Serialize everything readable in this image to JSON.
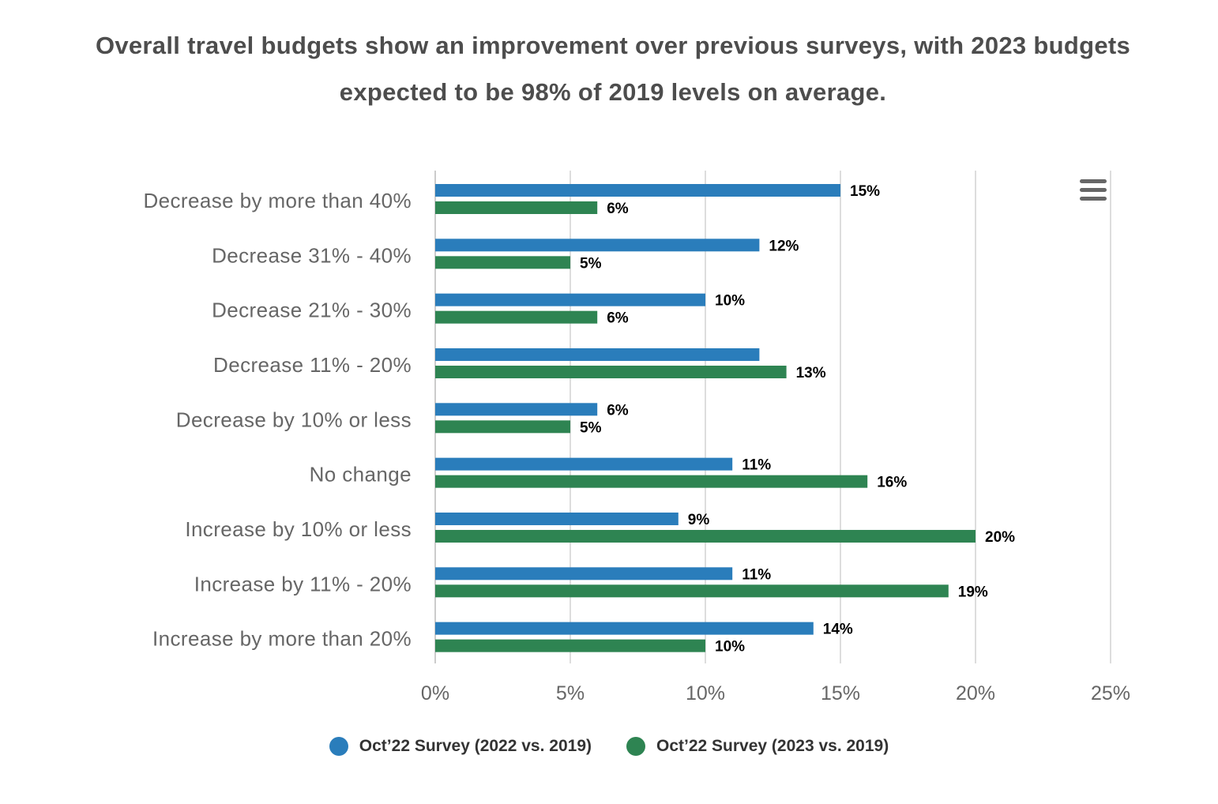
{
  "title": "Overall travel budgets show an improvement over previous surveys, with 2023 budgets expected to be 98% of 2019 levels on average.",
  "menu": {
    "icon": "hamburger-menu-icon"
  },
  "colors": {
    "series_2022": "#2a7dbb",
    "series_2023": "#2e8452",
    "grid": "#dddddd",
    "category_label": "#666666",
    "data_label": "#000000"
  },
  "chart_data": {
    "type": "bar",
    "orientation": "horizontal",
    "categories": [
      "Decrease by more than 40%",
      "Decrease 31% - 40%",
      "Decrease 21% - 30%",
      "Decrease 11% - 20%",
      "Decrease by 10% or less",
      "No change",
      "Increase by 10% or less",
      "Increase by 11% - 20%",
      "Increase by more than 20%"
    ],
    "series": [
      {
        "name": "Oct’22 Survey (2022 vs. 2019)",
        "values": [
          15,
          12,
          10,
          12,
          6,
          11,
          9,
          11,
          14
        ],
        "data_labels": [
          "15%",
          "12%",
          "10%",
          "",
          "6%",
          "11%",
          "9%",
          "11%",
          "14%"
        ]
      },
      {
        "name": "Oct’22 Survey (2023 vs. 2019)",
        "values": [
          6,
          5,
          6,
          13,
          5,
          16,
          20,
          19,
          10
        ],
        "data_labels": [
          "6%",
          "5%",
          "6%",
          "13%",
          "5%",
          "16%",
          "20%",
          "19%",
          "10%"
        ]
      }
    ],
    "xlim": [
      0,
      25
    ],
    "xticks": [
      0,
      5,
      10,
      15,
      20,
      25
    ],
    "xtick_labels": [
      "0%",
      "5%",
      "10%",
      "15%",
      "20%",
      "25%"
    ],
    "grid": true,
    "legend_position": "bottom-center"
  }
}
